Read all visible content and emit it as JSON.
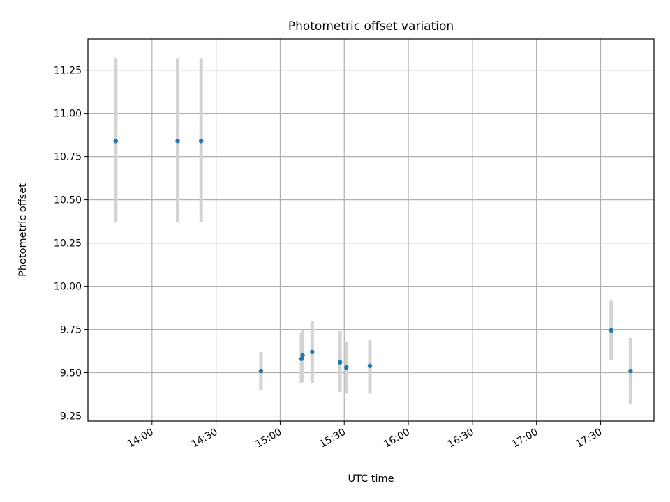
{
  "chart_data": {
    "type": "scatter",
    "title": "Photometric offset variation",
    "xlabel": "UTC time",
    "ylabel": "Photometric offset",
    "x_axis": {
      "kind": "time",
      "range": [
        "13:30",
        "17:55"
      ],
      "ticks": [
        "14:00",
        "14:30",
        "15:00",
        "15:30",
        "16:00",
        "16:30",
        "17:00",
        "17:30"
      ]
    },
    "y_axis": {
      "range": [
        9.22,
        11.43
      ],
      "ticks": [
        "9.25",
        "9.50",
        "9.75",
        "10.00",
        "10.25",
        "10.50",
        "10.75",
        "11.00",
        "11.25"
      ]
    },
    "grid": true,
    "colors": {
      "marker": "#1f77b4",
      "error_bar": "#d3d3d3"
    },
    "series": [
      {
        "points": [
          {
            "x": "13:43",
            "y": 10.84,
            "err_low": 10.37,
            "err_high": 11.32
          },
          {
            "x": "14:12",
            "y": 10.84,
            "err_low": 10.37,
            "err_high": 11.32
          },
          {
            "x": "14:23",
            "y": 10.84,
            "err_low": 10.37,
            "err_high": 11.32
          },
          {
            "x": "14:51",
            "y": 9.51,
            "err_low": 9.4,
            "err_high": 9.62
          },
          {
            "x": "15:10",
            "y": 9.58,
            "err_low": 9.44,
            "err_high": 9.73
          },
          {
            "x": "15:10.5",
            "y": 9.6,
            "err_low": 9.45,
            "err_high": 9.75
          },
          {
            "x": "15:15",
            "y": 9.62,
            "err_low": 9.44,
            "err_high": 9.8
          },
          {
            "x": "15:28",
            "y": 9.56,
            "err_low": 9.39,
            "err_high": 9.74
          },
          {
            "x": "15:31",
            "y": 9.53,
            "err_low": 9.38,
            "err_high": 9.68
          },
          {
            "x": "15:42",
            "y": 9.54,
            "err_low": 9.38,
            "err_high": 9.69
          },
          {
            "x": "17:35",
            "y": 9.745,
            "err_low": 9.575,
            "err_high": 9.92
          },
          {
            "x": "17:44",
            "y": 9.51,
            "err_low": 9.32,
            "err_high": 9.7
          }
        ]
      }
    ]
  }
}
